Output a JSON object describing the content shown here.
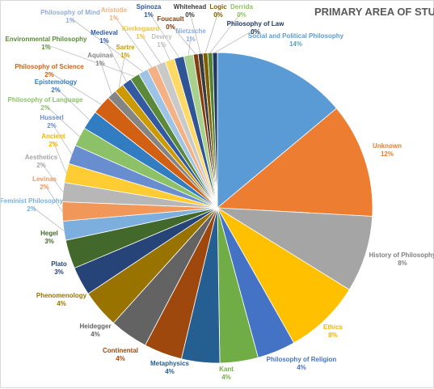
{
  "chart_data": {
    "type": "pie",
    "title": "PRIMARY AREA OF STUDY",
    "label_format": "percent",
    "slices": [
      {
        "label": "Social and Political Philosophy",
        "value": 14,
        "display": "14%",
        "color": "#5B9BD5"
      },
      {
        "label": "Unknown",
        "value": 12,
        "display": "12%",
        "color": "#ED7D31"
      },
      {
        "label": "History of Philosophy",
        "value": 8,
        "display": "8%",
        "color": "#A5A5A5"
      },
      {
        "label": "Ethics",
        "value": 8,
        "display": "8%",
        "color": "#FFC000"
      },
      {
        "label": "Philosophy of Religion",
        "value": 4,
        "display": "4%",
        "color": "#4472C4"
      },
      {
        "label": "Kant",
        "value": 4,
        "display": "4%",
        "color": "#70AD47"
      },
      {
        "label": "Metaphysics",
        "value": 4,
        "display": "4%",
        "color": "#255E91"
      },
      {
        "label": "Continental",
        "value": 4,
        "display": "4%",
        "color": "#9E480E"
      },
      {
        "label": "Heidegger",
        "value": 4,
        "display": "4%",
        "color": "#636363"
      },
      {
        "label": "Phenomenology",
        "value": 4,
        "display": "4%",
        "color": "#997300"
      },
      {
        "label": "Plato",
        "value": 3,
        "display": "3%",
        "color": "#264478"
      },
      {
        "label": "Hegel",
        "value": 3,
        "display": "3%",
        "color": "#43682B"
      },
      {
        "label": "Feminist Philosophy",
        "value": 2,
        "display": "2%",
        "color": "#7CAFDD"
      },
      {
        "label": "Levinas",
        "value": 2,
        "display": "2%",
        "color": "#F1975A"
      },
      {
        "label": "Aesthetics",
        "value": 2,
        "display": "2%",
        "color": "#B7B7B7"
      },
      {
        "label": "Ancient",
        "value": 2,
        "display": "2%",
        "color": "#FFCD33"
      },
      {
        "label": "Husserl",
        "value": 2,
        "display": "2%",
        "color": "#698ED0"
      },
      {
        "label": "Philosophy of Language",
        "value": 2,
        "display": "2%",
        "color": "#8CC168"
      },
      {
        "label": "Epistemology",
        "value": 2,
        "display": "2%",
        "color": "#327DC2"
      },
      {
        "label": "Philosophy of Science",
        "value": 2,
        "display": "2%",
        "color": "#D26012"
      },
      {
        "label": "Aquinas",
        "value": 1,
        "display": "1%",
        "color": "#848484"
      },
      {
        "label": "Sartre",
        "value": 1,
        "display": "1%",
        "color": "#CC9A00"
      },
      {
        "label": "Medieval",
        "value": 1,
        "display": "1%",
        "color": "#335AA1"
      },
      {
        "label": "Environmental Philosophy",
        "value": 1,
        "display": "1%",
        "color": "#5A8A39"
      },
      {
        "label": "Philosophy of Mind",
        "value": 1,
        "display": "1%",
        "color": "#9DC3E6"
      },
      {
        "label": "Aristotle",
        "value": 1,
        "display": "1%",
        "color": "#F4B183"
      },
      {
        "label": "Kierkegaard",
        "value": 1,
        "display": "1%",
        "color": "#C9C9C9"
      },
      {
        "label": "Dewey",
        "value": 1,
        "display": "1%",
        "color": "#FFD966"
      },
      {
        "label": "Spinoza",
        "value": 1,
        "display": "1%",
        "color": "#2F5597"
      },
      {
        "label": "Nietzsche",
        "value": 1,
        "display": "1%",
        "color": "#A9D18E"
      },
      {
        "label": "Foucault",
        "value": 0.5,
        "display": "0%",
        "color": "#843C0C"
      },
      {
        "label": "Whitehead",
        "value": 0.5,
        "display": "0%",
        "color": "#3B3B3B"
      },
      {
        "label": "Logic",
        "value": 0.5,
        "display": "0%",
        "color": "#7F6000"
      },
      {
        "label": "Derrida",
        "value": 0.5,
        "display": "0%",
        "color": "#548235"
      },
      {
        "label": "Philosophy of Law",
        "value": 0.5,
        "display": "0%",
        "color": "#1F3864"
      }
    ]
  }
}
